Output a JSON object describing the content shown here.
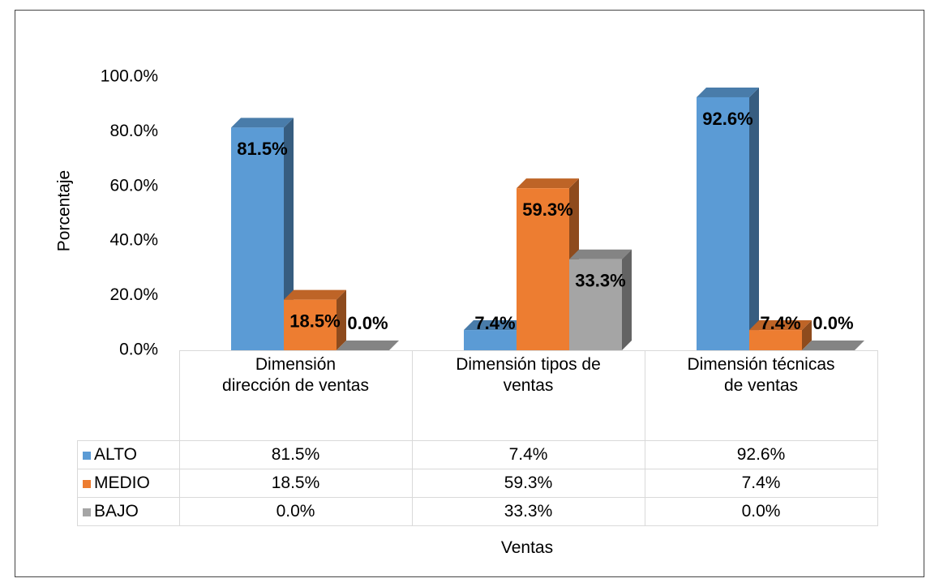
{
  "chart_data": {
    "type": "bar3d",
    "y_label": "Porcentaje",
    "x_label": "Ventas",
    "categories": [
      "Dimensión dirección de ventas",
      "Dimensión tipos de ventas",
      "Dimensión técnicas de ventas"
    ],
    "series": [
      {
        "name": "ALTO",
        "color": "#5b9bd5",
        "values": [
          81.5,
          7.4,
          92.6
        ],
        "value_labels": [
          "81.5%",
          "7.4%",
          "92.6%"
        ]
      },
      {
        "name": "MEDIO",
        "color": "#ed7d31",
        "values": [
          18.5,
          59.3,
          7.4
        ],
        "value_labels": [
          "18.5%",
          "59.3%",
          "7.4%"
        ]
      },
      {
        "name": "BAJO",
        "color": "#a5a5a5",
        "values": [
          0,
          33.3,
          0
        ],
        "value_labels": [
          "0.0%",
          "33.3%",
          "0.0%"
        ]
      }
    ],
    "ylim": [
      0,
      100
    ],
    "yticks": [
      {
        "value": 0,
        "label": "0.0%"
      },
      {
        "value": 20,
        "label": "20.0%"
      },
      {
        "value": 40,
        "label": "40.0%"
      },
      {
        "value": 60,
        "label": "60.0%"
      },
      {
        "value": 80,
        "label": "80.0%"
      },
      {
        "value": 100,
        "label": "100.0%"
      }
    ],
    "data_table": true
  }
}
